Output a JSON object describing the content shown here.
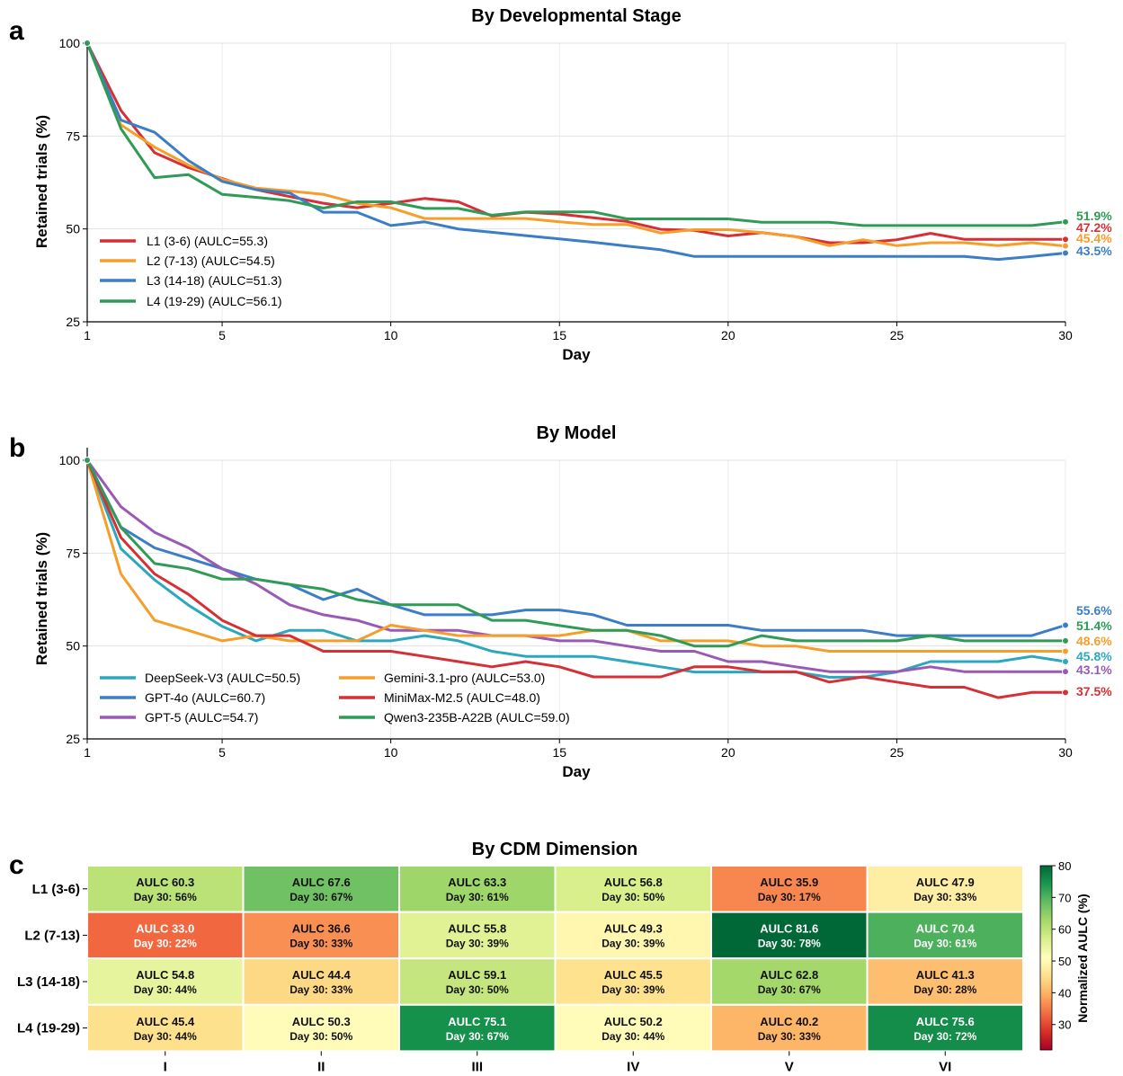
{
  "panels": {
    "a": {
      "letter": "a",
      "chart_data": {
        "type": "line",
        "title": "By Developmental Stage",
        "xlabel": "Day",
        "ylabel": "Retained trials (%)",
        "xlim": [
          1,
          30
        ],
        "ylim": [
          25,
          100
        ],
        "xticks": [
          "1",
          "5",
          "10",
          "15",
          "20",
          "25",
          "30"
        ],
        "yticks": [
          "25",
          "50",
          "75",
          "100"
        ],
        "grid": true,
        "legend_position": "lower-left",
        "series": [
          {
            "name": "L1 (3-6) (AULC=55.3)",
            "color": "#d62f35",
            "end_label": "47.2%",
            "x": [
              1,
              2,
              3,
              4,
              5,
              6,
              7,
              8,
              9,
              10,
              11,
              12,
              13,
              14,
              15,
              16,
              17,
              18,
              19,
              20,
              21,
              22,
              23,
              24,
              25,
              26,
              27,
              28,
              29,
              30
            ],
            "y": [
              100,
              81.9,
              70.5,
              66.5,
              63.6,
              60.6,
              58.7,
              56.9,
              55.7,
              56.9,
              58.2,
              57.3,
              53.5,
              54.5,
              54,
              53,
              52,
              49.9,
              49.6,
              48.1,
              49,
              47.9,
              46.3,
              46.3,
              47.1,
              48.8,
              47.2,
              47.2,
              47.2,
              47.2
            ]
          },
          {
            "name": "L2 (7-13) (AULC=54.5)",
            "color": "#f59e2a",
            "end_label": "45.4%",
            "x": [
              1,
              2,
              3,
              4,
              5,
              6,
              7,
              8,
              9,
              10,
              11,
              12,
              13,
              14,
              15,
              16,
              17,
              18,
              19,
              20,
              21,
              22,
              23,
              24,
              25,
              26,
              27,
              28,
              29,
              30
            ],
            "y": [
              100,
              78,
              72,
              67.2,
              63.4,
              61,
              60.2,
              59.3,
              56.9,
              55.7,
              52.8,
              52.8,
              52.8,
              52.8,
              51.9,
              51.2,
              51.2,
              48.9,
              49.8,
              49.8,
              49,
              47.9,
              45.5,
              47.1,
              45.5,
              46.3,
              46.3,
              45.5,
              46.3,
              45.4
            ]
          },
          {
            "name": "L3 (14-18) (AULC=51.3)",
            "color": "#3b7ec6",
            "end_label": "43.5%",
            "x": [
              1,
              2,
              3,
              4,
              5,
              6,
              7,
              8,
              9,
              10,
              11,
              12,
              13,
              14,
              15,
              16,
              17,
              18,
              19,
              20,
              21,
              22,
              23,
              24,
              25,
              26,
              27,
              28,
              29,
              30
            ],
            "y": [
              100,
              79.3,
              76,
              68.4,
              62.8,
              60.6,
              59.7,
              54.5,
              54.5,
              50.9,
              51.9,
              50,
              49.1,
              48.2,
              47.3,
              46.4,
              45.4,
              44.4,
              42.6,
              42.6,
              42.6,
              42.6,
              42.6,
              42.6,
              42.6,
              42.6,
              42.6,
              41.8,
              42.6,
              43.5
            ]
          },
          {
            "name": "L4 (19-29) (AULC=56.1)",
            "color": "#2f9b57",
            "end_label": "51.9%",
            "x": [
              1,
              2,
              3,
              4,
              5,
              6,
              7,
              8,
              9,
              10,
              11,
              12,
              13,
              14,
              15,
              16,
              17,
              18,
              19,
              20,
              21,
              22,
              23,
              24,
              25,
              26,
              27,
              28,
              29,
              30
            ],
            "y": [
              100,
              77,
              63.8,
              64.6,
              59.3,
              58.5,
              57.6,
              55.6,
              57.3,
              57.3,
              55.5,
              55.5,
              53.7,
              54.6,
              54.6,
              54.6,
              52.7,
              52.7,
              52.7,
              52.7,
              51.8,
              51.8,
              51.8,
              50.9,
              50.9,
              50.9,
              50.9,
              50.9,
              50.9,
              51.9
            ]
          }
        ]
      }
    },
    "b": {
      "letter": "b",
      "chart_data": {
        "type": "line",
        "title": "By Model",
        "xlabel": "Day",
        "ylabel": "Retained trials (%)",
        "xlim": [
          1,
          30
        ],
        "ylim": [
          25,
          100
        ],
        "xticks": [
          "1",
          "5",
          "10",
          "15",
          "20",
          "25",
          "30"
        ],
        "yticks": [
          "25",
          "50",
          "75",
          "100"
        ],
        "grid": true,
        "legend_position": "lower-left",
        "series": [
          {
            "name": "DeepSeek-V3 (AULC=50.5)",
            "color": "#2ca7bd",
            "end_label": "45.8%",
            "x": [
              1,
              2,
              3,
              4,
              5,
              6,
              7,
              8,
              9,
              10,
              11,
              12,
              13,
              14,
              15,
              16,
              17,
              18,
              19,
              20,
              21,
              22,
              23,
              24,
              25,
              26,
              27,
              28,
              29,
              30
            ],
            "y": [
              100,
              76.2,
              67.8,
              61,
              55.3,
              51.4,
              54.2,
              54.2,
              51.4,
              51.4,
              52.8,
              51.4,
              48.6,
              47.2,
              47.2,
              47.2,
              45.8,
              44.4,
              43,
              43,
              43,
              43,
              41.6,
              41.6,
              43,
              45.8,
              45.8,
              45.8,
              47.2,
              45.8
            ]
          },
          {
            "name": "GPT-4o (AULC=60.7)",
            "color": "#3b7ec6",
            "end_label": "55.6%",
            "x": [
              1,
              2,
              3,
              4,
              5,
              6,
              7,
              8,
              9,
              10,
              11,
              12,
              13,
              14,
              15,
              16,
              17,
              18,
              19,
              20,
              21,
              22,
              23,
              24,
              25,
              26,
              27,
              28,
              29,
              30
            ],
            "y": [
              100,
              82,
              76.4,
              73.6,
              70.8,
              68,
              66.6,
              62.5,
              65.3,
              61.1,
              58.4,
              58.4,
              58.4,
              59.7,
              59.7,
              58.4,
              55.6,
              55.6,
              55.6,
              55.6,
              54.2,
              54.2,
              54.2,
              54.2,
              52.8,
              52.8,
              52.8,
              52.8,
              52.8,
              55.6
            ]
          },
          {
            "name": "GPT-5 (AULC=54.7)",
            "color": "#9b59b6",
            "end_label": "43.1%",
            "x": [
              1,
              2,
              3,
              4,
              5,
              6,
              7,
              8,
              9,
              10,
              11,
              12,
              13,
              14,
              15,
              16,
              17,
              18,
              19,
              20,
              21,
              22,
              23,
              24,
              25,
              26,
              27,
              28,
              29,
              30
            ],
            "y": [
              100,
              87.5,
              80.6,
              76.4,
              70.8,
              66.7,
              61.1,
              58.4,
              56.9,
              54.2,
              54.2,
              54.2,
              52.8,
              52.8,
              51.4,
              51.4,
              50,
              48.6,
              48.6,
              45.8,
              45.8,
              44.4,
              43.1,
              43.1,
              43.1,
              44.4,
              43.1,
              43.1,
              43.1,
              43.1
            ]
          },
          {
            "name": "Gemini-3.1-pro (AULC=53.0)",
            "color": "#f59e2a",
            "end_label": "48.6%",
            "x": [
              1,
              2,
              3,
              4,
              5,
              6,
              7,
              8,
              9,
              10,
              11,
              12,
              13,
              14,
              15,
              16,
              17,
              18,
              19,
              20,
              21,
              22,
              23,
              24,
              25,
              26,
              27,
              28,
              29,
              30
            ],
            "y": [
              100,
              69.4,
              56.9,
              54.2,
              51.4,
              52.8,
              51.4,
              51.4,
              51.4,
              55.6,
              54.2,
              52.8,
              52.8,
              52.8,
              52.8,
              54.2,
              54.2,
              51.4,
              51.4,
              51.4,
              50,
              50,
              48.6,
              48.6,
              48.6,
              48.6,
              48.6,
              48.6,
              48.6,
              48.6
            ]
          },
          {
            "name": "MiniMax-M2.5 (AULC=48.0)",
            "color": "#d62f35",
            "end_label": "37.5%",
            "x": [
              1,
              2,
              3,
              4,
              5,
              6,
              7,
              8,
              9,
              10,
              11,
              12,
              13,
              14,
              15,
              16,
              17,
              18,
              19,
              20,
              21,
              22,
              23,
              24,
              25,
              26,
              27,
              28,
              29,
              30
            ],
            "y": [
              100,
              79.2,
              69.4,
              63.9,
              56.9,
              52.8,
              52.8,
              48.6,
              48.6,
              48.6,
              47.2,
              45.8,
              44.4,
              45.8,
              44.4,
              41.7,
              41.7,
              41.7,
              44.4,
              44.4,
              43.1,
              43.1,
              40.3,
              41.7,
              40.3,
              38.9,
              38.9,
              36.1,
              37.5,
              37.5
            ]
          },
          {
            "name": "Qwen3-235B-A22B (AULC=59.0)",
            "color": "#2f9b57",
            "end_label": "51.4%",
            "x": [
              1,
              2,
              3,
              4,
              5,
              6,
              7,
              8,
              9,
              10,
              11,
              12,
              13,
              14,
              15,
              16,
              17,
              18,
              19,
              20,
              21,
              22,
              23,
              24,
              25,
              26,
              27,
              28,
              29,
              30
            ],
            "y": [
              100,
              81.9,
              72.2,
              70.8,
              68,
              68,
              66.6,
              65.3,
              62.5,
              61.1,
              61.1,
              61.1,
              56.9,
              56.9,
              55.5,
              54.2,
              54.2,
              52.8,
              50,
              50,
              52.8,
              51.4,
              51.4,
              51.4,
              51.4,
              52.8,
              51.4,
              51.4,
              51.4,
              51.4
            ]
          }
        ]
      }
    },
    "c": {
      "letter": "c",
      "chart_data": {
        "type": "heatmap",
        "title": "By CDM Dimension",
        "rows": [
          "L1 (3-6)",
          "L2 (7-13)",
          "L3 (14-18)",
          "L4 (19-29)"
        ],
        "cols": [
          "I",
          "II",
          "III",
          "IV",
          "V",
          "VI"
        ],
        "values": [
          [
            60.3,
            67.6,
            63.3,
            56.8,
            35.9,
            47.9
          ],
          [
            33.0,
            36.6,
            55.8,
            49.3,
            81.6,
            70.4
          ],
          [
            54.8,
            44.4,
            59.1,
            45.5,
            62.8,
            41.3
          ],
          [
            45.4,
            50.3,
            75.1,
            50.2,
            40.2,
            75.6
          ]
        ],
        "cell_line1": [
          [
            "AULC 60.3",
            "AULC 67.6",
            "AULC 63.3",
            "AULC 56.8",
            "AULC 35.9",
            "AULC 47.9"
          ],
          [
            "AULC 33.0",
            "AULC 36.6",
            "AULC 55.8",
            "AULC 49.3",
            "AULC 81.6",
            "AULC 70.4"
          ],
          [
            "AULC 54.8",
            "AULC 44.4",
            "AULC 59.1",
            "AULC 45.5",
            "AULC 62.8",
            "AULC 41.3"
          ],
          [
            "AULC 45.4",
            "AULC 50.3",
            "AULC 75.1",
            "AULC 50.2",
            "AULC 40.2",
            "AULC 75.6"
          ]
        ],
        "cell_line2": [
          [
            "Day 30: 56%",
            "Day 30: 67%",
            "Day 30: 61%",
            "Day 30: 50%",
            "Day 30: 17%",
            "Day 30: 33%"
          ],
          [
            "Day 30: 22%",
            "Day 30: 33%",
            "Day 30: 39%",
            "Day 30: 39%",
            "Day 30: 78%",
            "Day 30: 61%"
          ],
          [
            "Day 30: 44%",
            "Day 30: 33%",
            "Day 30: 50%",
            "Day 30: 39%",
            "Day 30: 67%",
            "Day 30: 28%"
          ],
          [
            "Day 30: 44%",
            "Day 30: 50%",
            "Day 30: 67%",
            "Day 30: 44%",
            "Day 30: 33%",
            "Day 30: 72%"
          ]
        ],
        "colorbar": {
          "label": "Normalized AULC (%)",
          "range": [
            22,
            80
          ],
          "ticks": [
            "30",
            "40",
            "50",
            "60",
            "70",
            "80"
          ],
          "colormap": "RdYlGn"
        }
      }
    }
  }
}
